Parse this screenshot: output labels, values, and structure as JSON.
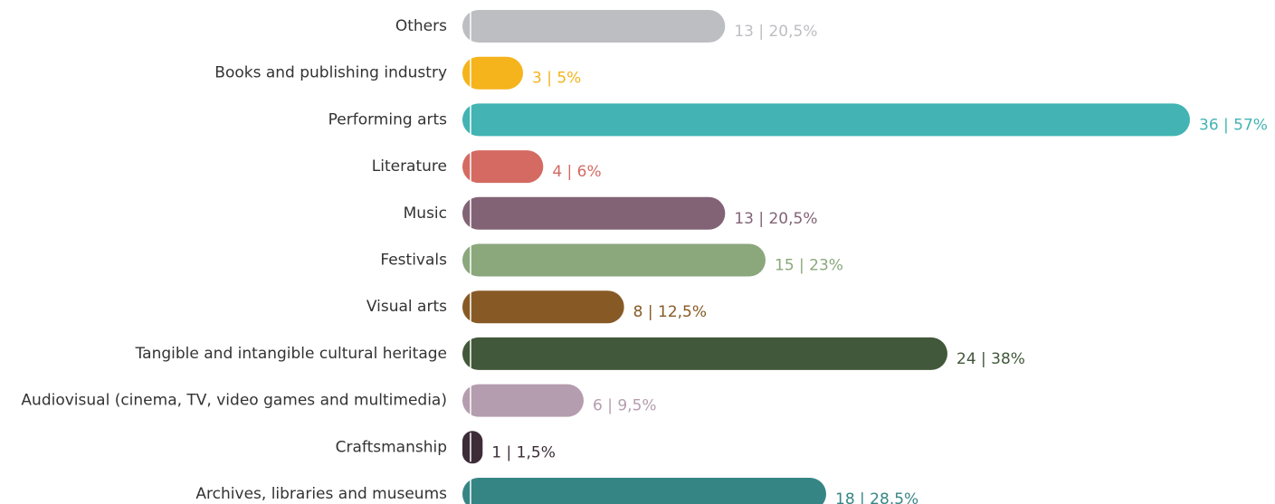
{
  "chart_data": {
    "type": "bar",
    "orientation": "horizontal",
    "categories": [
      "Others",
      "Books and publishing industry",
      "Performing arts",
      "Literature",
      "Music",
      "Festivals",
      "Visual arts",
      "Tangible and intangible cultural heritage",
      "Audiovisual (cinema, TV, video games and multimedia)",
      "Craftsmanship",
      "Archives, libraries and museums"
    ],
    "values": [
      13,
      3,
      36,
      4,
      13,
      15,
      8,
      24,
      6,
      1,
      18
    ],
    "value_labels": [
      "13 | 20,5%",
      "3 | 5%",
      "36 | 57%",
      "4 | 6%",
      "13 | 20,5%",
      "15 | 23%",
      "8 | 12,5%",
      "24 | 38%",
      "6 | 9,5%",
      "1 | 1,5%",
      "18 | 28,5%"
    ],
    "colors": [
      "#bdbec2",
      "#f5b31c",
      "#43b3b3",
      "#d46a62",
      "#826375",
      "#8aa87c",
      "#875a25",
      "#42583a",
      "#b49dae",
      "#3d2c38",
      "#368585"
    ]
  }
}
